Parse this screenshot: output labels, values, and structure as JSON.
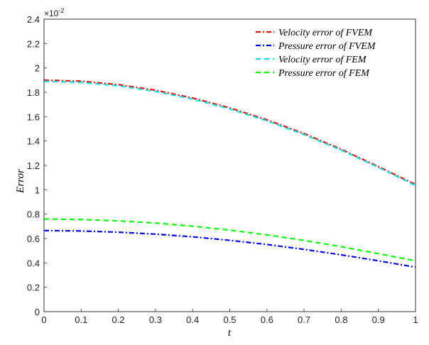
{
  "chart_data": {
    "type": "line",
    "title": "",
    "xlabel": "t",
    "ylabel": "Error",
    "y_multiplier_label": "×10",
    "y_multiplier_exp": "-2",
    "xlim": [
      0,
      1
    ],
    "ylim": [
      0,
      2.4
    ],
    "grid": false,
    "legend_position": "top-right",
    "x_ticks": [
      "0",
      "0.1",
      "0.2",
      "0.3",
      "0.4",
      "0.5",
      "0.6",
      "0.7",
      "0.8",
      "0.9",
      "1"
    ],
    "y_ticks": [
      "0",
      "0.2",
      "0.4",
      "0.6",
      "0.8",
      "1",
      "1.2",
      "1.4",
      "1.6",
      "1.8",
      "2",
      "2.2",
      "2.4"
    ],
    "x": [
      0,
      0.1,
      0.2,
      0.3,
      0.4,
      0.5,
      0.6,
      0.7,
      0.8,
      0.9,
      1
    ],
    "series": [
      {
        "name": "Velocity error of FVEM",
        "color": "#ff0000",
        "style": "dashdot",
        "values": [
          1.9,
          1.891,
          1.863,
          1.817,
          1.753,
          1.672,
          1.574,
          1.461,
          1.332,
          1.19,
          1.043
        ]
      },
      {
        "name": "Pressure error of FVEM",
        "color": "#0000ff",
        "style": "dashdot",
        "values": [
          0.665,
          0.662,
          0.652,
          0.636,
          0.614,
          0.585,
          0.551,
          0.511,
          0.466,
          0.417,
          0.365
        ]
      },
      {
        "name": "Velocity error of FEM",
        "color": "#00e5e5",
        "style": "dashed",
        "values": [
          1.89,
          1.881,
          1.853,
          1.807,
          1.744,
          1.663,
          1.566,
          1.453,
          1.325,
          1.184,
          1.035
        ]
      },
      {
        "name": "Pressure error of FEM",
        "color": "#00ff00",
        "style": "dashed",
        "values": [
          0.76,
          0.756,
          0.745,
          0.727,
          0.701,
          0.669,
          0.63,
          0.584,
          0.533,
          0.476,
          0.417
        ]
      }
    ]
  }
}
